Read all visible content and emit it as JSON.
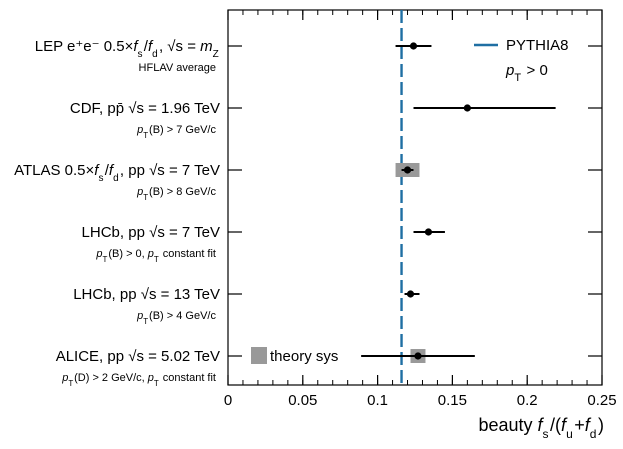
{
  "chart_data": {
    "type": "scatter",
    "xlabel": "beauty f_s/(f_u+f_d)",
    "xlim": [
      0,
      0.25
    ],
    "xticks": [
      "0",
      "0.05",
      "0.1",
      "0.15",
      "0.2",
      "0.25"
    ],
    "reference": {
      "name": "PYTHIA8",
      "value": 0.116,
      "color": "#1f6fa3",
      "note": "p_T > 0"
    },
    "theory_legend": "theory sys",
    "measurements": [
      {
        "label": "LEP  e⁺e⁻ 0.5×f_s/f_d, √s = m_Z",
        "sublabel": "HFLAV average",
        "value": 0.124,
        "err_low": 0.012,
        "err_high": 0.012,
        "sys": null
      },
      {
        "label": "CDF, pp̄  √s = 1.96 TeV",
        "sublabel": "p_T(B) > 7 GeV/c",
        "value": 0.16,
        "err_low": 0.036,
        "err_high": 0.059,
        "sys": null
      },
      {
        "label": "ATLAS 0.5×f_s/f_d, pp  √s = 7 TeV",
        "sublabel": "p_T(B) > 8 GeV/c",
        "value": 0.12,
        "err_low": 0.004,
        "err_high": 0.004,
        "sys": [
          0.112,
          0.128
        ]
      },
      {
        "label": "LHCb, pp  √s = 7 TeV",
        "sublabel": "p_T(B) > 0, p_T constant fit",
        "value": 0.134,
        "err_low": 0.01,
        "err_high": 0.011,
        "sys": null
      },
      {
        "label": "LHCb, pp  √s = 13 TeV",
        "sublabel": "p_T(B) > 4 GeV/c",
        "value": 0.122,
        "err_low": 0.004,
        "err_high": 0.006,
        "sys": null
      },
      {
        "label": "ALICE, pp  √s = 5.02 TeV",
        "sublabel": "p_T(D) > 2 GeV/c, p_T constant fit",
        "value": 0.127,
        "err_low": 0.038,
        "err_high": 0.038,
        "sys": [
          0.122,
          0.132
        ]
      }
    ]
  }
}
